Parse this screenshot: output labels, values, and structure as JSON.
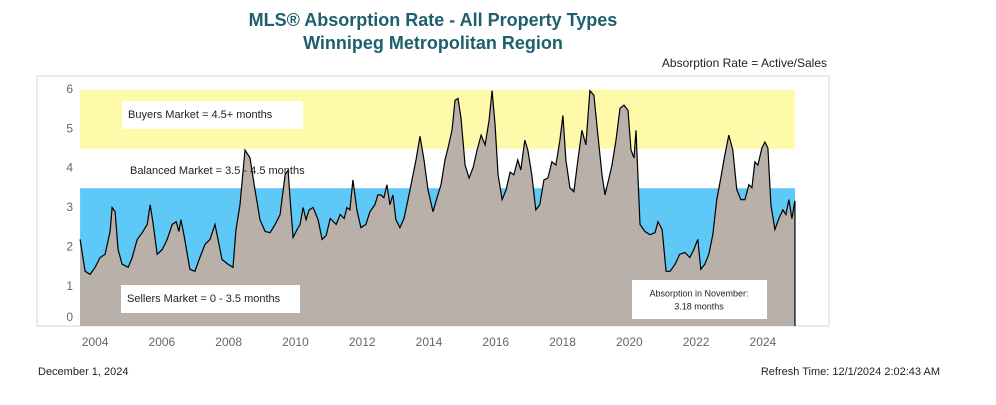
{
  "chart_data": {
    "type": "area",
    "title": "MLS® Absorption Rate - All Property Types",
    "subtitle": "Winnipeg Metropolitan Region",
    "note": "Absorption Rate = Active/Sales",
    "bands": [
      {
        "label": "Buyers Market = 4.5+ months",
        "from": 4.5,
        "to": 6,
        "color": "#fffaaa"
      },
      {
        "label": "Balanced Market = 3.5 - 4.5 months",
        "from": 3.5,
        "to": 4.5,
        "color": "#ffffff"
      },
      {
        "label": "Sellers Market = 0 - 3.5 months",
        "from": 0,
        "to": 3.5,
        "color": "#5ec8f6"
      }
    ],
    "annotation": [
      "Absorption in November:",
      "3.18 months"
    ],
    "date": "December 1, 2024",
    "refresh": "Refresh Time: 12/1/2024 2:02:43 AM",
    "color": "#b9b0aa",
    "line_color": "#000000",
    "xlim": [
      2002.26,
      2025.98
    ],
    "xticks": [
      2004,
      2006,
      2008,
      2010,
      2012,
      2014,
      2016,
      2018,
      2020,
      2022,
      2024
    ],
    "ylim": [
      0,
      6.35
    ],
    "yticks": [
      0,
      1,
      2,
      3,
      4,
      5,
      6
    ],
    "grid": false,
    "x": [
      2003.55,
      2003.7,
      2003.85,
      2004.0,
      2004.15,
      2004.3,
      2004.45,
      2004.51,
      2004.6,
      2004.69,
      2004.81,
      2004.99,
      2005.11,
      2005.26,
      2005.41,
      2005.56,
      2005.65,
      2005.74,
      2005.86,
      2006.01,
      2006.16,
      2006.31,
      2006.43,
      2006.51,
      2006.57,
      2006.66,
      2006.84,
      2006.99,
      2007.14,
      2007.29,
      2007.44,
      2007.59,
      2007.68,
      2007.8,
      2007.98,
      2008.13,
      2008.22,
      2008.34,
      2008.49,
      2008.64,
      2008.79,
      2008.94,
      2009.09,
      2009.24,
      2009.39,
      2009.54,
      2009.69,
      2009.78,
      2009.84,
      2009.93,
      2010.05,
      2010.14,
      2010.23,
      2010.32,
      2010.41,
      2010.53,
      2010.68,
      2010.8,
      2010.92,
      2011.04,
      2011.22,
      2011.34,
      2011.46,
      2011.54,
      2011.63,
      2011.72,
      2011.84,
      2011.96,
      2012.11,
      2012.23,
      2012.38,
      2012.47,
      2012.56,
      2012.65,
      2012.74,
      2012.83,
      2012.92,
      2013.01,
      2013.13,
      2013.25,
      2013.37,
      2013.49,
      2013.61,
      2013.73,
      2013.85,
      2013.97,
      2014.12,
      2014.24,
      2014.36,
      2014.48,
      2014.57,
      2014.69,
      2014.78,
      2014.87,
      2014.96,
      2015.08,
      2015.2,
      2015.32,
      2015.44,
      2015.56,
      2015.68,
      2015.8,
      2015.89,
      2015.98,
      2016.07,
      2016.19,
      2016.31,
      2016.43,
      2016.54,
      2016.66,
      2016.75,
      2016.87,
      2016.96,
      2017.08,
      2017.2,
      2017.32,
      2017.44,
      2017.56,
      2017.68,
      2017.8,
      2017.92,
      2018.01,
      2018.1,
      2018.22,
      2018.34,
      2018.46,
      2018.58,
      2018.7,
      2018.82,
      2018.94,
      2019.06,
      2019.18,
      2019.27,
      2019.39,
      2019.48,
      2019.6,
      2019.72,
      2019.84,
      2019.96,
      2020.05,
      2020.14,
      2020.2,
      2020.32,
      2020.47,
      2020.62,
      2020.77,
      2020.86,
      2020.98,
      2021.1,
      2021.22,
      2021.37,
      2021.51,
      2021.66,
      2021.81,
      2021.93,
      2022.05,
      2022.14,
      2022.26,
      2022.38,
      2022.5,
      2022.62,
      2022.74,
      2022.86,
      2022.98,
      2023.1,
      2023.22,
      2023.34,
      2023.46,
      2023.58,
      2023.67,
      2023.76,
      2023.85,
      2023.97,
      2024.06,
      2024.15,
      2024.24,
      2024.36,
      2024.48,
      2024.6,
      2024.69,
      2024.78,
      2024.87,
      2024.96
    ],
    "values": [
      2.2,
      1.39,
      1.31,
      1.49,
      1.74,
      1.82,
      2.4,
      3.01,
      2.9,
      1.94,
      1.57,
      1.49,
      1.74,
      2.2,
      2.37,
      2.58,
      3.08,
      2.58,
      1.82,
      1.94,
      2.2,
      2.58,
      2.65,
      2.4,
      2.7,
      2.32,
      1.44,
      1.39,
      1.74,
      2.07,
      2.2,
      2.58,
      2.2,
      1.69,
      1.57,
      1.49,
      2.45,
      3.08,
      4.47,
      4.27,
      3.46,
      2.7,
      2.4,
      2.37,
      2.58,
      2.83,
      3.84,
      3.96,
      3.21,
      2.25,
      2.45,
      2.58,
      3.01,
      2.7,
      2.95,
      3.01,
      2.7,
      2.2,
      2.3,
      2.73,
      2.58,
      2.83,
      2.73,
      3.01,
      2.95,
      3.71,
      2.95,
      2.5,
      2.58,
      2.9,
      3.08,
      3.33,
      3.33,
      3.26,
      3.59,
      3.08,
      3.33,
      2.7,
      2.5,
      2.73,
      3.21,
      3.71,
      4.22,
      4.82,
      4.22,
      3.46,
      2.9,
      3.26,
      3.59,
      4.22,
      4.52,
      4.97,
      5.73,
      5.78,
      5.28,
      4.09,
      3.76,
      4.02,
      4.47,
      4.85,
      4.6,
      5.23,
      5.98,
      5.1,
      3.84,
      3.21,
      3.46,
      3.91,
      3.84,
      4.22,
      3.96,
      4.72,
      4.47,
      3.84,
      2.95,
      3.08,
      3.71,
      3.76,
      4.17,
      4.09,
      4.72,
      5.35,
      4.22,
      3.51,
      3.41,
      4.22,
      4.97,
      4.6,
      5.98,
      5.86,
      4.85,
      3.84,
      3.33,
      3.76,
      4.09,
      4.72,
      5.53,
      5.61,
      5.48,
      4.47,
      4.27,
      4.97,
      2.58,
      2.4,
      2.32,
      2.37,
      2.65,
      2.45,
      1.39,
      1.39,
      1.57,
      1.82,
      1.87,
      1.74,
      1.94,
      2.2,
      1.44,
      1.57,
      1.82,
      2.32,
      3.21,
      3.76,
      4.34,
      4.85,
      4.47,
      3.46,
      3.21,
      3.21,
      3.59,
      3.51,
      4.17,
      4.09,
      4.52,
      4.67,
      4.52,
      3.08,
      2.45,
      2.73,
      2.95,
      2.83,
      3.21,
      2.73,
      3.18
    ]
  }
}
